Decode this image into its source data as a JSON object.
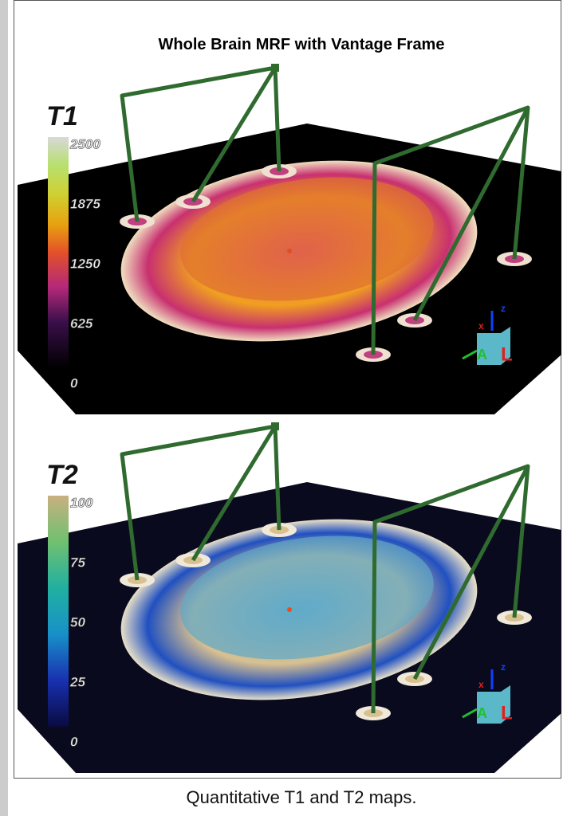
{
  "title": "Whole Brain MRF with Vantage Frame",
  "panels": [
    {
      "label": "T1",
      "colorbar_lim": [
        0,
        2500
      ],
      "colorbar_ticks": [
        2500,
        1875,
        1250,
        625,
        0
      ],
      "orientation_labels": [
        "z",
        "x",
        "A",
        "L"
      ]
    },
    {
      "label": "T2",
      "colorbar_lim": [
        0,
        100
      ],
      "colorbar_ticks": [
        100,
        75,
        50,
        25,
        0
      ],
      "orientation_labels": [
        "z",
        "x",
        "A",
        "L"
      ]
    }
  ],
  "caption": "Quantitative T1 and T2 maps."
}
